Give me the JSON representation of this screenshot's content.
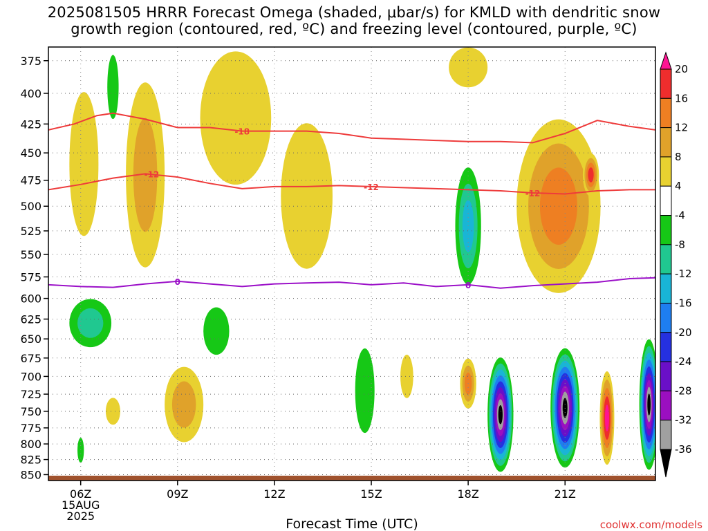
{
  "title": {
    "line1": "2025081505 HRRR Forecast Omega (shaded, μbar/s) for KMLD with dendritic snow",
    "line2": "growth region (contoured, red, ºC) and freezing level (contoured, purple, ºC)"
  },
  "credit": "coolwx.com/models",
  "chart_data": {
    "type": "heatmap",
    "xlabel": "Forecast Time (UTC)",
    "x_ticks": [
      {
        "label": "06Z",
        "sub": [
          "15AUG",
          "2025"
        ],
        "hour": 6
      },
      {
        "label": "09Z",
        "hour": 9
      },
      {
        "label": "12Z",
        "hour": 12
      },
      {
        "label": "15Z",
        "hour": 15
      },
      {
        "label": "18Z",
        "hour": 18
      },
      {
        "label": "21Z",
        "hour": 21
      }
    ],
    "xlim": [
      5,
      23.8
    ],
    "y_ticks": [
      375,
      400,
      425,
      450,
      475,
      500,
      525,
      550,
      575,
      600,
      625,
      650,
      675,
      700,
      725,
      750,
      775,
      800,
      825,
      850
    ],
    "ylim_pressure_hPa": [
      860,
      365
    ],
    "colorbar": {
      "levels": [
        20,
        16,
        12,
        8,
        4,
        -4,
        -8,
        -12,
        -16,
        -20,
        -24,
        -28,
        -32,
        -36
      ],
      "colors": [
        "#ff1493",
        "#ee2d2d",
        "#ee7f22",
        "#e0a22a",
        "#e8d130",
        "#ffffff",
        "#16c816",
        "#20c890",
        "#19b5d6",
        "#1e7ef0",
        "#2530e0",
        "#6a0fc8",
        "#9b0fc0",
        "#a0a0a0",
        "#000000"
      ]
    },
    "dgz_contours": [
      {
        "label": "-18",
        "points": [
          [
            5,
            430
          ],
          [
            5.8,
            425
          ],
          [
            6.5,
            418
          ],
          [
            7,
            416
          ],
          [
            8,
            421
          ],
          [
            9,
            428
          ],
          [
            10,
            428
          ],
          [
            11,
            431
          ],
          [
            12,
            431
          ],
          [
            13,
            431
          ],
          [
            14,
            433
          ],
          [
            15,
            437
          ],
          [
            16,
            438
          ],
          [
            17,
            439
          ],
          [
            18,
            440
          ],
          [
            19,
            440
          ],
          [
            20,
            441
          ],
          [
            21,
            433
          ],
          [
            22,
            422
          ],
          [
            23,
            427
          ],
          [
            23.8,
            430
          ]
        ]
      },
      {
        "label": "-12",
        "points": [
          [
            5,
            484
          ],
          [
            6,
            479
          ],
          [
            7,
            473
          ],
          [
            8,
            469
          ],
          [
            9,
            472
          ],
          [
            10,
            478
          ],
          [
            11,
            483
          ],
          [
            12,
            481
          ],
          [
            13,
            481
          ],
          [
            14,
            480
          ],
          [
            15,
            481
          ],
          [
            16,
            482
          ],
          [
            17,
            483
          ],
          [
            18,
            484
          ],
          [
            19,
            485
          ],
          [
            20,
            487
          ],
          [
            21,
            488
          ],
          [
            22,
            485
          ],
          [
            23,
            484
          ],
          [
            23.8,
            484
          ]
        ]
      }
    ],
    "contour_labels": [
      "-18",
      "-12",
      "-12",
      "-12",
      "0",
      "0"
    ],
    "freezing_level": {
      "label": "0",
      "points": [
        [
          5,
          584
        ],
        [
          6,
          586
        ],
        [
          7,
          587
        ],
        [
          8,
          583
        ],
        [
          9,
          580
        ],
        [
          10,
          583
        ],
        [
          11,
          586
        ],
        [
          12,
          583
        ],
        [
          13,
          582
        ],
        [
          14,
          581
        ],
        [
          15,
          584
        ],
        [
          16,
          582
        ],
        [
          17,
          586
        ],
        [
          18,
          584
        ],
        [
          19,
          588
        ],
        [
          20,
          585
        ],
        [
          21,
          583
        ],
        [
          22,
          581
        ],
        [
          23,
          577
        ],
        [
          23.8,
          576
        ]
      ]
    },
    "omega_cells": [
      {
        "x": 6.1,
        "p": 460,
        "w": 0.9,
        "h": 130,
        "v": 6
      },
      {
        "x": 8.0,
        "p": 470,
        "w": 1.2,
        "h": 170,
        "v": 9
      },
      {
        "x": 7.0,
        "p": 395,
        "w": 0.35,
        "h": 50,
        "v": -6
      },
      {
        "x": 10.8,
        "p": 420,
        "w": 2.2,
        "h": 110,
        "v": 5
      },
      {
        "x": 13.0,
        "p": 490,
        "w": 1.6,
        "h": 140,
        "v": 6
      },
      {
        "x": 6.3,
        "p": 630,
        "w": 1.3,
        "h": 60,
        "v": -9
      },
      {
        "x": 10.2,
        "p": 640,
        "w": 0.8,
        "h": 60,
        "v": -6
      },
      {
        "x": 9.2,
        "p": 740,
        "w": 1.2,
        "h": 110,
        "v": 8
      },
      {
        "x": 7.0,
        "p": 750,
        "w": 0.45,
        "h": 40,
        "v": 6
      },
      {
        "x": 6.0,
        "p": 810,
        "w": 0.2,
        "h": 40,
        "v": -6
      },
      {
        "x": 14.8,
        "p": 720,
        "w": 0.6,
        "h": 120,
        "v": -6
      },
      {
        "x": 16.1,
        "p": 700,
        "w": 0.4,
        "h": 60,
        "v": 6
      },
      {
        "x": 18.0,
        "p": 520,
        "w": 0.8,
        "h": 120,
        "v": -14
      },
      {
        "x": 18.0,
        "p": 380,
        "w": 1.2,
        "h": 30,
        "v": 6
      },
      {
        "x": 20.8,
        "p": 500,
        "w": 2.6,
        "h": 170,
        "v": 12
      },
      {
        "x": 21.8,
        "p": 470,
        "w": 0.5,
        "h": 40,
        "v": 18
      },
      {
        "x": 18.0,
        "p": 710,
        "w": 0.5,
        "h": 70,
        "v": 14
      },
      {
        "x": 19.0,
        "p": 755,
        "w": 0.8,
        "h": 170,
        "v": -40
      },
      {
        "x": 21.0,
        "p": 745,
        "w": 0.9,
        "h": 175,
        "v": -40
      },
      {
        "x": 22.3,
        "p": 760,
        "w": 0.45,
        "h": 140,
        "v": 20
      },
      {
        "x": 23.6,
        "p": 740,
        "w": 0.6,
        "h": 190,
        "v": -40
      }
    ]
  }
}
